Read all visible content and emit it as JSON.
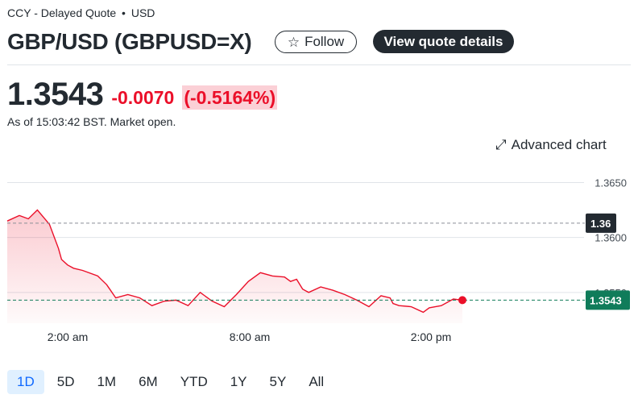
{
  "header": {
    "exchange": "CCY - Delayed Quote",
    "separator": "•",
    "currency": "USD",
    "title": "GBP/USD (GBPUSD=X)",
    "follow_label": "Follow",
    "view_quote_label": "View quote details"
  },
  "quote": {
    "price": "1.3543",
    "change": "-0.0070",
    "change_pct": "(-0.5164%)",
    "as_of": "As of 15:03:42 BST. Market open."
  },
  "advanced_chart_label": "Advanced chart",
  "icons": {
    "star": "star-icon",
    "expand": "expand-arrow-icon"
  },
  "colors": {
    "negative": "#eb0f29",
    "negative_bg": "#fbd0d6",
    "current_badge": "#107c5a",
    "prev_close_badge": "#232a31",
    "active_range": "#0f69ff"
  },
  "chart_data": {
    "type": "area",
    "x_ticks": [
      "2:00 am",
      "8:00 am",
      "2:00 pm"
    ],
    "y_ticks": [
      "1.3650",
      "1.3600",
      "1.3550"
    ],
    "prev_close_label": "1.36",
    "current_label": "1.3543",
    "prev_close": 1.3613,
    "current": 1.3543,
    "ylim": [
      1.3522,
      1.3665
    ],
    "series": [
      {
        "x": [
          0,
          4,
          7,
          10,
          14,
          17,
          18,
          20,
          22,
          25,
          30,
          33,
          34,
          36,
          40,
          44,
          48,
          52,
          56,
          60,
          64,
          68,
          72,
          76,
          80,
          84,
          88,
          92,
          94,
          96,
          98,
          100,
          104,
          108,
          112,
          116,
          120,
          124,
          127,
          128,
          130,
          134,
          138,
          140,
          144,
          148,
          151
        ],
        "y": [
          1.3615,
          1.362,
          1.3617,
          1.3625,
          1.3612,
          1.359,
          1.358,
          1.3575,
          1.3572,
          1.357,
          1.3565,
          1.3557,
          1.3553,
          1.3545,
          1.3548,
          1.3545,
          1.3538,
          1.3542,
          1.3543,
          1.3538,
          1.355,
          1.3542,
          1.3537,
          1.3548,
          1.356,
          1.3568,
          1.3565,
          1.3564,
          1.356,
          1.3562,
          1.3553,
          1.355,
          1.3555,
          1.3552,
          1.3548,
          1.3543,
          1.3537,
          1.3547,
          1.3545,
          1.354,
          1.3538,
          1.3537,
          1.3532,
          1.3536,
          1.3538,
          1.3544,
          1.3543
        ]
      }
    ]
  },
  "ranges": [
    {
      "label": "1D",
      "active": true
    },
    {
      "label": "5D",
      "active": false
    },
    {
      "label": "1M",
      "active": false
    },
    {
      "label": "6M",
      "active": false
    },
    {
      "label": "YTD",
      "active": false
    },
    {
      "label": "1Y",
      "active": false
    },
    {
      "label": "5Y",
      "active": false
    },
    {
      "label": "All",
      "active": false
    }
  ]
}
